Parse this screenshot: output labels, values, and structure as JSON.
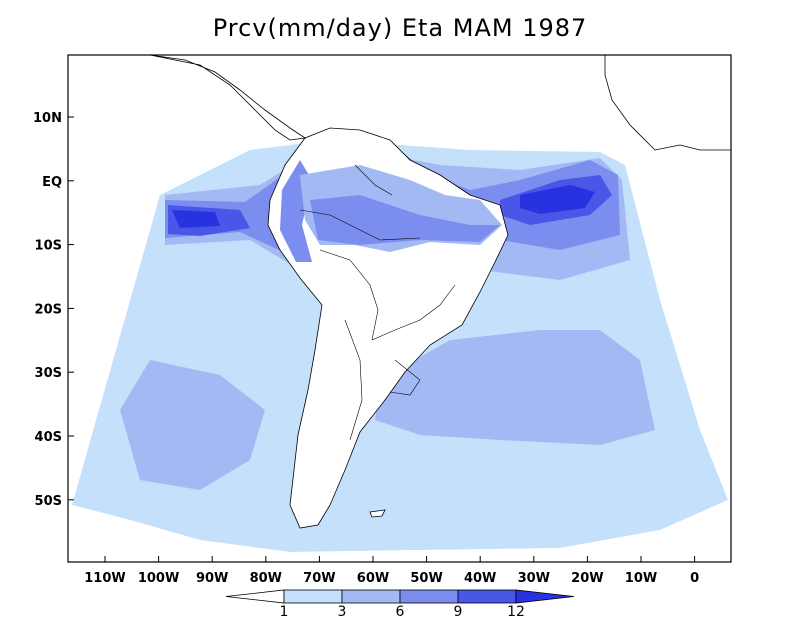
{
  "title": "Prcv(mm/day) Eta MAM 1987",
  "x_axis": {
    "ticks": [
      "110W",
      "100W",
      "90W",
      "80W",
      "70W",
      "60W",
      "50W",
      "40W",
      "30W",
      "20W",
      "10W",
      "0"
    ]
  },
  "y_axis": {
    "ticks": [
      "10N",
      "EQ",
      "10S",
      "20S",
      "30S",
      "40S",
      "50S"
    ]
  },
  "colorbar": {
    "labels": [
      "1",
      "3",
      "6",
      "9",
      "12"
    ],
    "colors": [
      "#ffffff",
      "#c4e0fb",
      "#a3b9f4",
      "#7b8eef",
      "#4a56e8",
      "#2733e0"
    ]
  },
  "colors": {
    "land": "#ffffff",
    "background": "#ffffff",
    "outline": "#000000"
  }
}
